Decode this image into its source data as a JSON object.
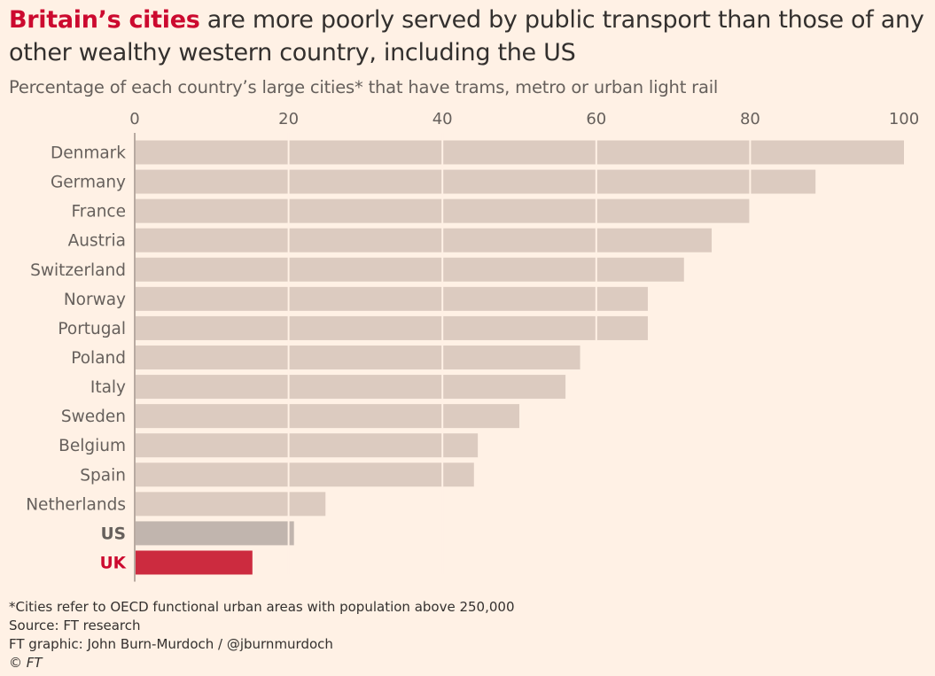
{
  "title": {
    "highlight": "Britain’s cities",
    "rest": " are more poorly served by public transport than those of any other wealthy western country, including the US"
  },
  "subtitle": "Percentage of each country’s large cities* that have trams, metro or urban light rail",
  "chart_data": {
    "type": "bar",
    "orientation": "horizontal",
    "categories": [
      "Denmark",
      "Germany",
      "France",
      "Austria",
      "Switzerland",
      "Norway",
      "Portugal",
      "Poland",
      "Italy",
      "Sweden",
      "Belgium",
      "Spain",
      "Netherlands",
      "US",
      "UK"
    ],
    "values": [
      100,
      88.5,
      80,
      75,
      71.4,
      66.7,
      66.7,
      57.9,
      56,
      50,
      44.6,
      44.1,
      24.8,
      20.7,
      15.3
    ],
    "xlim": [
      0,
      100
    ],
    "xticks": [
      0,
      20,
      40,
      60,
      80,
      100
    ],
    "grid": true,
    "highlighted": {
      "US": "#c1b5ae",
      "UK": "#cc2b3f"
    },
    "colors": {
      "default_bar": "#dccbc0",
      "grid": "#fff1e5",
      "label": "#66605c",
      "us_label": "#66605c",
      "uk_label": "#cc0a2f"
    },
    "xaxis_position": "top"
  },
  "footer": {
    "note": "*Cities refer to OECD functional urban areas with population above 250,000",
    "source": "Source: FT research",
    "credit": "FT graphic: John Burn-Murdoch / @jburnmurdoch",
    "copyright": "© FT"
  }
}
